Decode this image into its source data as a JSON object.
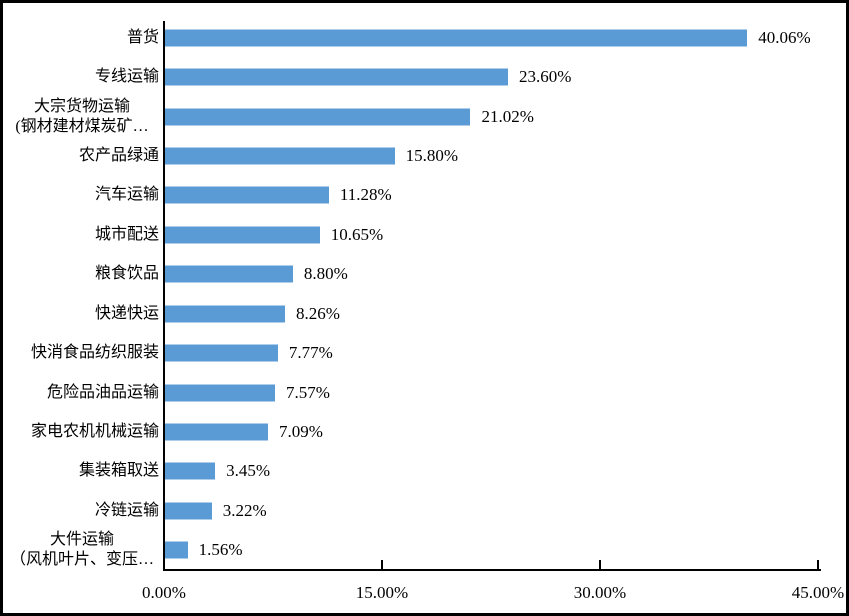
{
  "chart_data": {
    "type": "bar",
    "orientation": "horizontal",
    "title": "",
    "categories": [
      "普货",
      "专线运输",
      "大宗货物运输\n(钢材建材煤炭矿…",
      "农产品绿通",
      "汽车运输",
      "城市配送",
      "粮食饮品",
      "快递快运",
      "快消食品纺织服装",
      "危险品油品运输",
      "家电农机机械运输",
      "集装箱取送",
      "冷链运输",
      "大件运输\n（风机叶片、变压…"
    ],
    "values": [
      40.06,
      23.6,
      21.02,
      15.8,
      11.28,
      10.65,
      8.8,
      8.26,
      7.77,
      7.57,
      7.09,
      3.45,
      3.22,
      1.56
    ],
    "value_labels": [
      "40.06%",
      "23.60%",
      "21.02%",
      "15.80%",
      "11.28%",
      "10.65%",
      "8.80%",
      "8.26%",
      "7.77%",
      "7.57%",
      "7.09%",
      "3.45%",
      "3.22%",
      "1.56%"
    ],
    "x_ticks": [
      {
        "value": 0,
        "label": "0.00%"
      },
      {
        "value": 15,
        "label": "15.00%"
      },
      {
        "value": 30,
        "label": "30.00%"
      },
      {
        "value": 45,
        "label": "45.00%"
      }
    ],
    "xlim": [
      0,
      45
    ],
    "bar_color": "#5B9BD5",
    "axis_color": "#000000",
    "grid": false,
    "legend": "none"
  }
}
